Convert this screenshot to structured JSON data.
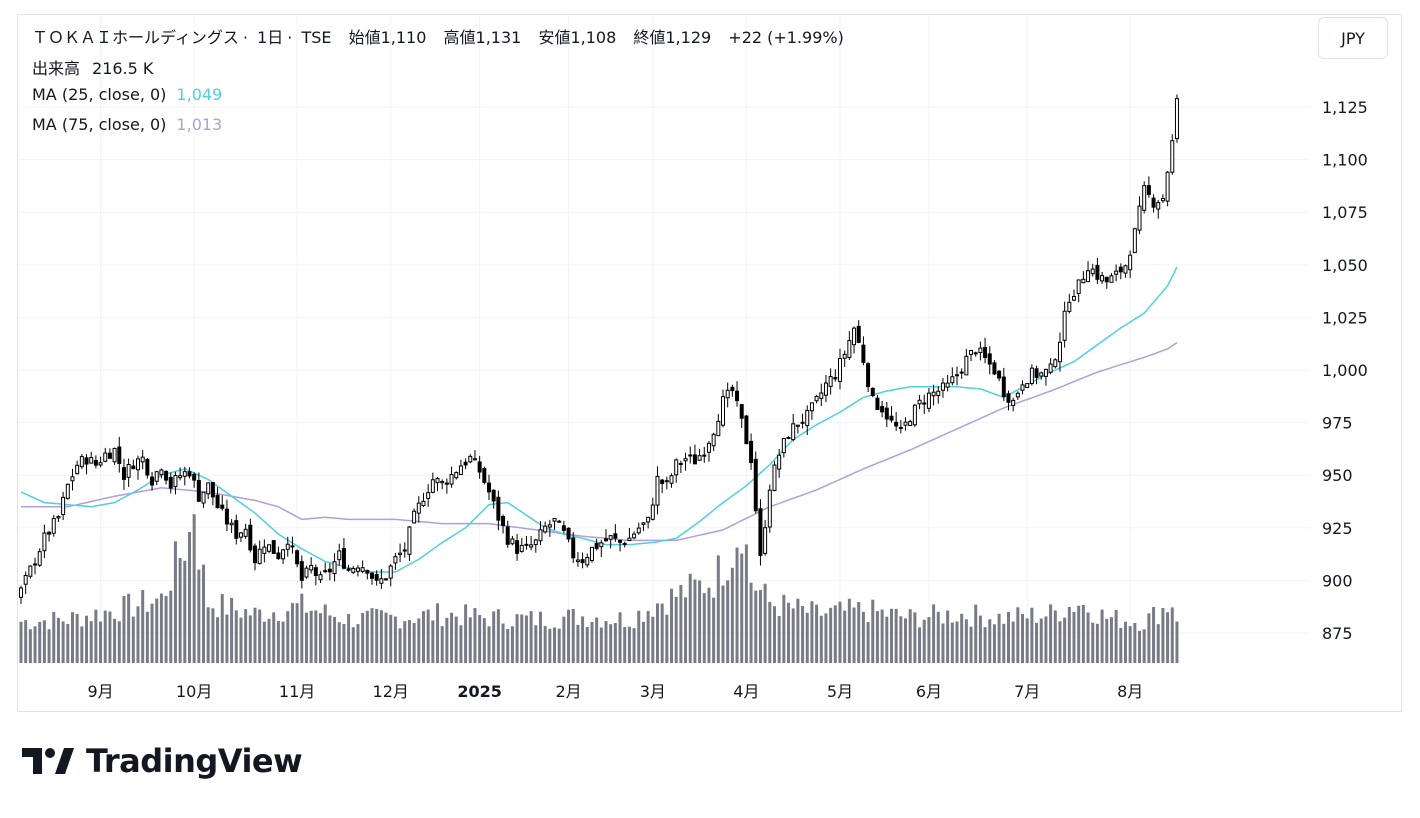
{
  "header": {
    "symbol": "ＴＯＫＡＩホールディングス",
    "interval": "1日",
    "exchange": "TSE",
    "open_label": "始値",
    "open": "1,110",
    "high_label": "高値",
    "high": "1,131",
    "low_label": "安値",
    "low": "1,108",
    "close_label": "終値",
    "close": "1,129",
    "change": "+22 (+1.99%)"
  },
  "volume_legend": {
    "label": "出来高",
    "value": "216.5 K"
  },
  "ma_legend": [
    {
      "label": "MA (25, close, 0)",
      "value": "1,049",
      "color": "#4dd0e1"
    },
    {
      "label": "MA (75, close, 0)",
      "value": "1,013",
      "color": "#b39ddb"
    }
  ],
  "currency": "JPY",
  "brand": {
    "name": "TradingView",
    "logo_icon": "tradingview-logo-icon"
  },
  "colors": {
    "up_body": "#ffffff",
    "down_body": "#000000",
    "wick": "#000000",
    "volume": "#787b86",
    "grid": "#f0f3fa"
  },
  "chart_data": {
    "type": "candlestick",
    "title": "ＴＯＫＡＩホールディングス · 1日 · TSE",
    "y_ticks": [
      "875",
      "900",
      "925",
      "950",
      "975",
      "1,000",
      "1,025",
      "1,050",
      "1,075",
      "1,100",
      "1,125"
    ],
    "y_tick_values": [
      875,
      900,
      925,
      950,
      975,
      1000,
      1025,
      1050,
      1075,
      1100,
      1125
    ],
    "ylim": [
      863,
      1148
    ],
    "x_labels": [
      {
        "label": "9月",
        "bar": 17,
        "bold": false
      },
      {
        "label": "10月",
        "bar": 37,
        "bold": false
      },
      {
        "label": "11月",
        "bar": 59,
        "bold": false
      },
      {
        "label": "12月",
        "bar": 79,
        "bold": false
      },
      {
        "label": "2025",
        "bar": 98,
        "bold": true
      },
      {
        "label": "2月",
        "bar": 117,
        "bold": false
      },
      {
        "label": "3月",
        "bar": 135,
        "bold": false
      },
      {
        "label": "4月",
        "bar": 155,
        "bold": false
      },
      {
        "label": "5月",
        "bar": 175,
        "bold": false
      },
      {
        "label": "6月",
        "bar": 194,
        "bold": false
      },
      {
        "label": "7月",
        "bar": 215,
        "bold": false
      },
      {
        "label": "8月",
        "bar": 237,
        "bold": false
      }
    ],
    "close_anchors": [
      [
        0,
        895
      ],
      [
        5,
        920
      ],
      [
        8,
        930
      ],
      [
        10,
        945
      ],
      [
        12,
        955
      ],
      [
        14,
        958
      ],
      [
        16,
        955
      ],
      [
        18,
        960
      ],
      [
        20,
        962
      ],
      [
        22,
        950
      ],
      [
        24,
        956
      ],
      [
        26,
        958
      ],
      [
        28,
        948
      ],
      [
        30,
        955
      ],
      [
        32,
        945
      ],
      [
        34,
        950
      ],
      [
        36,
        952
      ],
      [
        38,
        940
      ],
      [
        40,
        945
      ],
      [
        42,
        935
      ],
      [
        44,
        928
      ],
      [
        46,
        922
      ],
      [
        48,
        925
      ],
      [
        50,
        910
      ],
      [
        52,
        918
      ],
      [
        55,
        912
      ],
      [
        57,
        920
      ],
      [
        60,
        900
      ],
      [
        62,
        906
      ],
      [
        64,
        900
      ],
      [
        66,
        905
      ],
      [
        68,
        912
      ],
      [
        70,
        905
      ],
      [
        72,
        908
      ],
      [
        74,
        906
      ],
      [
        76,
        898
      ],
      [
        78,
        902
      ],
      [
        80,
        910
      ],
      [
        82,
        915
      ],
      [
        84,
        930
      ],
      [
        86,
        940
      ],
      [
        88,
        948
      ],
      [
        90,
        946
      ],
      [
        92,
        950
      ],
      [
        94,
        955
      ],
      [
        96,
        958
      ],
      [
        98,
        952
      ],
      [
        100,
        942
      ],
      [
        102,
        930
      ],
      [
        104,
        920
      ],
      [
        106,
        915
      ],
      [
        108,
        915
      ],
      [
        110,
        918
      ],
      [
        112,
        925
      ],
      [
        114,
        928
      ],
      [
        116,
        922
      ],
      [
        118,
        912
      ],
      [
        120,
        910
      ],
      [
        122,
        915
      ],
      [
        124,
        918
      ],
      [
        126,
        920
      ],
      [
        128,
        918
      ],
      [
        130,
        920
      ],
      [
        132,
        925
      ],
      [
        134,
        928
      ],
      [
        136,
        948
      ],
      [
        138,
        945
      ],
      [
        140,
        955
      ],
      [
        142,
        958
      ],
      [
        144,
        957
      ],
      [
        146,
        962
      ],
      [
        148,
        972
      ],
      [
        150,
        985
      ],
      [
        152,
        990
      ],
      [
        154,
        975
      ],
      [
        156,
        958
      ],
      [
        158,
        910
      ],
      [
        160,
        945
      ],
      [
        162,
        960
      ],
      [
        164,
        970
      ],
      [
        166,
        975
      ],
      [
        168,
        978
      ],
      [
        170,
        985
      ],
      [
        172,
        993
      ],
      [
        174,
        998
      ],
      [
        176,
        1008
      ],
      [
        178,
        1020
      ],
      [
        180,
        1005
      ],
      [
        182,
        985
      ],
      [
        184,
        982
      ],
      [
        186,
        975
      ],
      [
        188,
        970
      ],
      [
        190,
        978
      ],
      [
        192,
        984
      ],
      [
        194,
        988
      ],
      [
        196,
        990
      ],
      [
        198,
        992
      ],
      [
        200,
        998
      ],
      [
        202,
        1005
      ],
      [
        204,
        1010
      ],
      [
        206,
        1005
      ],
      [
        208,
        1000
      ],
      [
        210,
        990
      ],
      [
        212,
        985
      ],
      [
        214,
        995
      ],
      [
        216,
        998
      ],
      [
        218,
        998
      ],
      [
        220,
        1000
      ],
      [
        222,
        1015
      ],
      [
        224,
        1035
      ],
      [
        226,
        1040
      ],
      [
        228,
        1050
      ],
      [
        230,
        1045
      ],
      [
        232,
        1042
      ],
      [
        234,
        1045
      ],
      [
        236,
        1050
      ],
      [
        238,
        1065
      ],
      [
        240,
        1085
      ],
      [
        242,
        1080
      ],
      [
        244,
        1082
      ],
      [
        246,
        1108
      ],
      [
        247,
        1129
      ]
    ],
    "last_bar": {
      "open": 1110,
      "high": 1131,
      "low": 1108,
      "close": 1129
    },
    "volume_anchors": [
      [
        0,
        55
      ],
      [
        10,
        58
      ],
      [
        20,
        70
      ],
      [
        30,
        85
      ],
      [
        33,
        130
      ],
      [
        36,
        170
      ],
      [
        37,
        216
      ],
      [
        38,
        150
      ],
      [
        40,
        80
      ],
      [
        50,
        65
      ],
      [
        60,
        75
      ],
      [
        70,
        58
      ],
      [
        80,
        60
      ],
      [
        90,
        65
      ],
      [
        100,
        60
      ],
      [
        110,
        58
      ],
      [
        120,
        62
      ],
      [
        130,
        58
      ],
      [
        136,
        80
      ],
      [
        140,
        90
      ],
      [
        148,
        110
      ],
      [
        152,
        150
      ],
      [
        154,
        190
      ],
      [
        156,
        110
      ],
      [
        158,
        95
      ],
      [
        160,
        80
      ],
      [
        170,
        65
      ],
      [
        180,
        70
      ],
      [
        190,
        60
      ],
      [
        200,
        65
      ],
      [
        210,
        60
      ],
      [
        220,
        65
      ],
      [
        226,
        80
      ],
      [
        232,
        60
      ],
      [
        240,
        55
      ],
      [
        246,
        80
      ],
      [
        247,
        55
      ]
    ],
    "volume_max": 216.5,
    "ma25_anchors": [
      [
        0,
        942
      ],
      [
        5,
        937
      ],
      [
        10,
        936
      ],
      [
        15,
        935
      ],
      [
        20,
        937
      ],
      [
        25,
        943
      ],
      [
        30,
        950
      ],
      [
        35,
        953
      ],
      [
        40,
        948
      ],
      [
        45,
        940
      ],
      [
        50,
        932
      ],
      [
        55,
        922
      ],
      [
        60,
        915
      ],
      [
        65,
        909
      ],
      [
        70,
        906
      ],
      [
        75,
        904
      ],
      [
        80,
        904
      ],
      [
        85,
        910
      ],
      [
        90,
        918
      ],
      [
        95,
        925
      ],
      [
        100,
        936
      ],
      [
        104,
        937
      ],
      [
        108,
        931
      ],
      [
        112,
        925
      ],
      [
        116,
        922
      ],
      [
        120,
        920
      ],
      [
        125,
        917
      ],
      [
        130,
        917
      ],
      [
        135,
        918
      ],
      [
        140,
        920
      ],
      [
        145,
        928
      ],
      [
        150,
        937
      ],
      [
        155,
        945
      ],
      [
        160,
        955
      ],
      [
        165,
        967
      ],
      [
        170,
        974
      ],
      [
        175,
        980
      ],
      [
        180,
        987
      ],
      [
        185,
        990
      ],
      [
        190,
        992
      ],
      [
        195,
        992
      ],
      [
        200,
        992
      ],
      [
        205,
        991
      ],
      [
        210,
        987
      ],
      [
        215,
        993
      ],
      [
        220,
        999
      ],
      [
        225,
        1004
      ],
      [
        230,
        1012
      ],
      [
        235,
        1020
      ],
      [
        240,
        1027
      ],
      [
        245,
        1040
      ],
      [
        247,
        1049
      ]
    ],
    "ma75_anchors": [
      [
        0,
        935
      ],
      [
        10,
        935
      ],
      [
        20,
        940
      ],
      [
        30,
        944
      ],
      [
        40,
        942
      ],
      [
        50,
        938
      ],
      [
        55,
        935
      ],
      [
        60,
        929
      ],
      [
        65,
        930
      ],
      [
        70,
        929
      ],
      [
        80,
        929
      ],
      [
        90,
        927
      ],
      [
        100,
        927
      ],
      [
        110,
        924
      ],
      [
        120,
        921
      ],
      [
        130,
        919
      ],
      [
        140,
        919
      ],
      [
        150,
        924
      ],
      [
        160,
        935
      ],
      [
        170,
        943
      ],
      [
        180,
        953
      ],
      [
        190,
        962
      ],
      [
        200,
        972
      ],
      [
        210,
        982
      ],
      [
        220,
        990
      ],
      [
        230,
        999
      ],
      [
        240,
        1006
      ],
      [
        245,
        1010
      ],
      [
        247,
        1013
      ]
    ]
  }
}
